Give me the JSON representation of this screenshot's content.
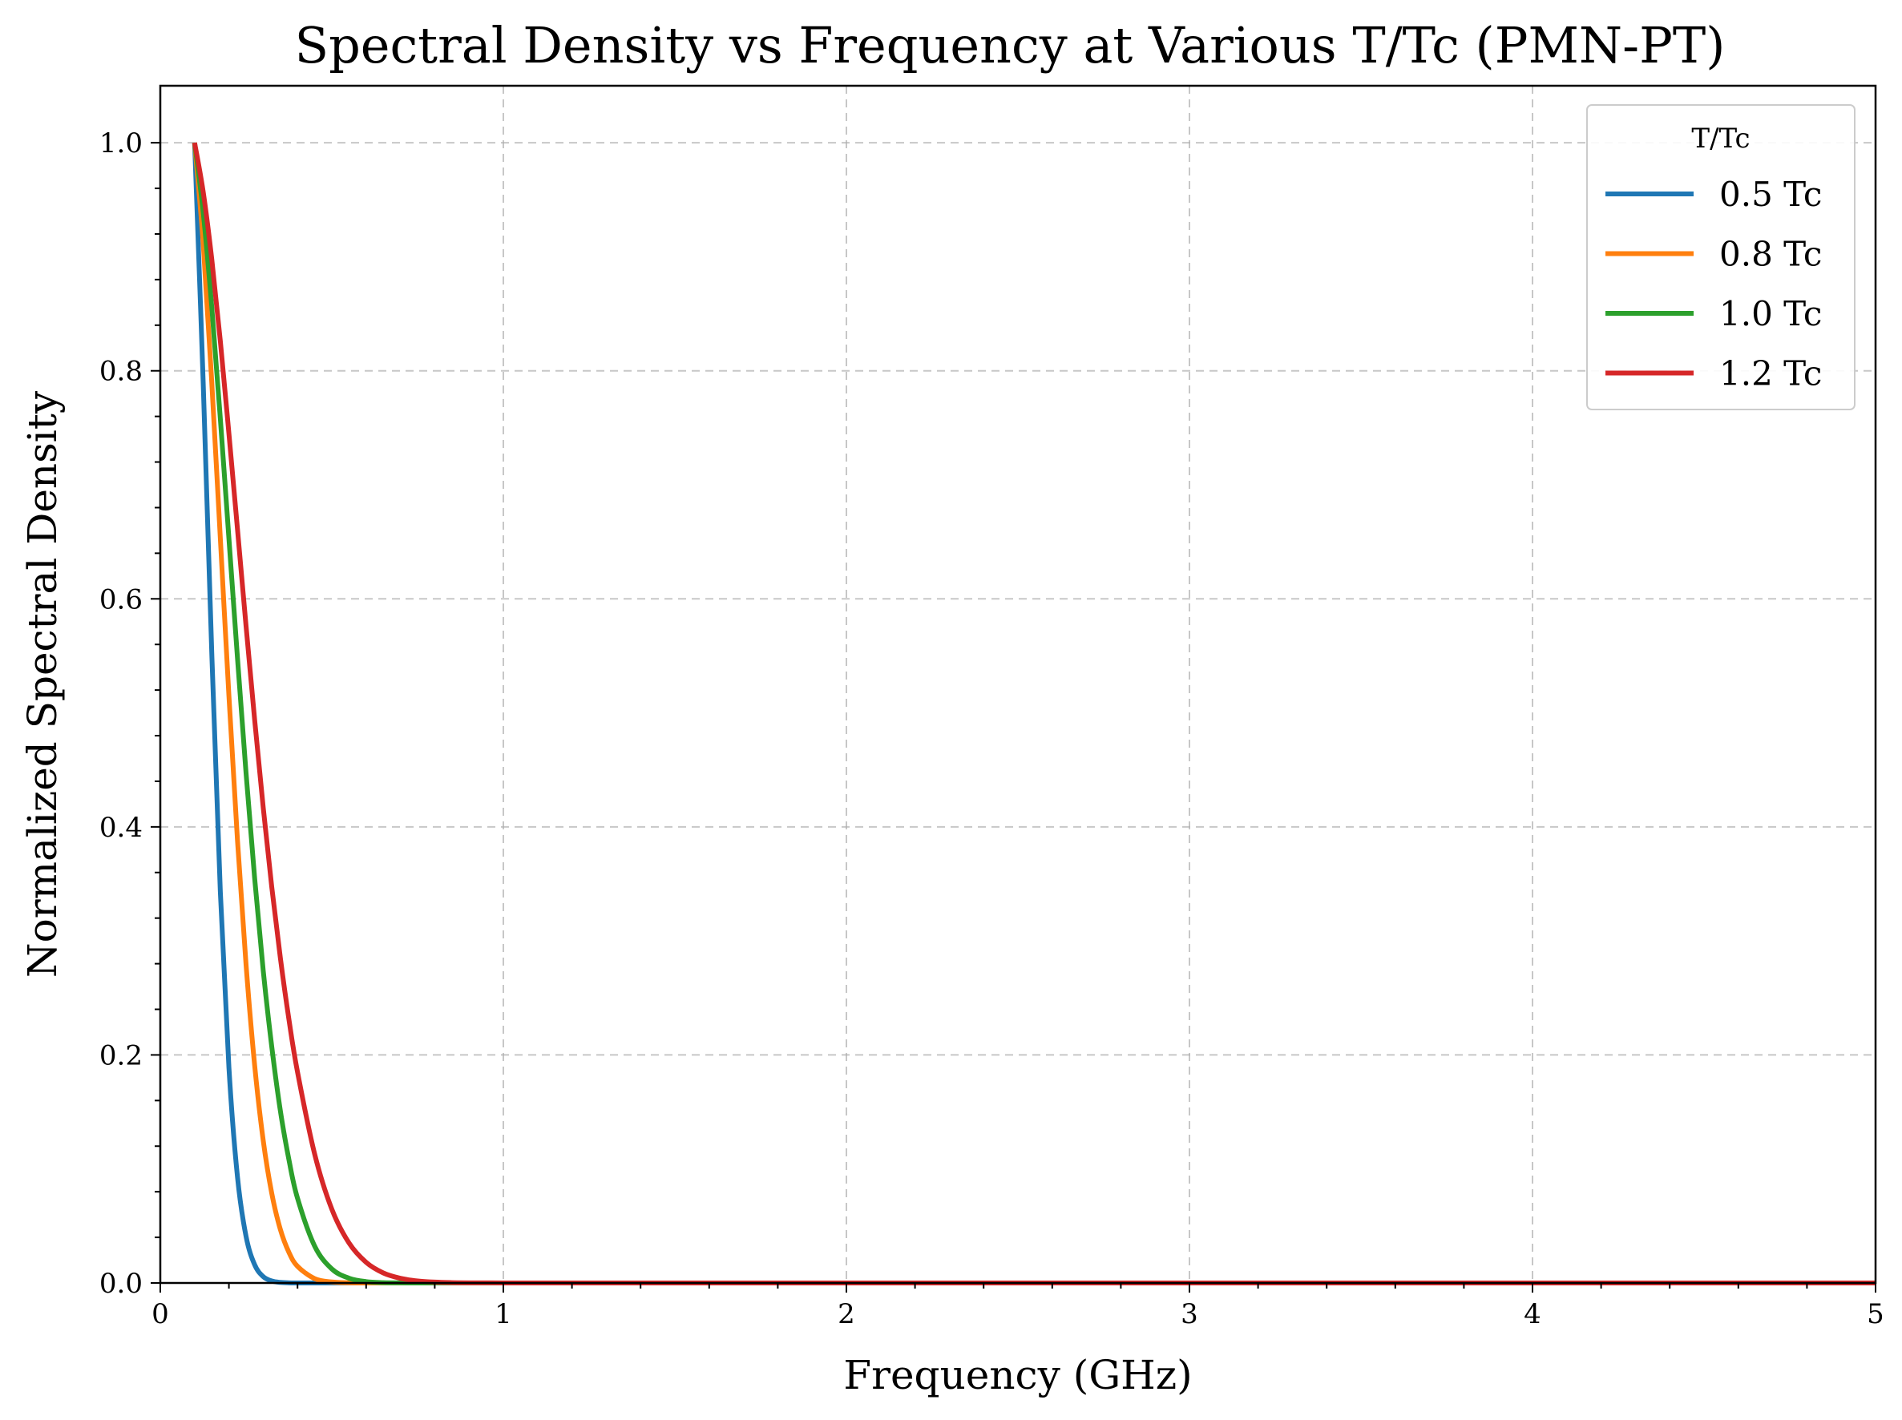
{
  "chart_data": {
    "type": "line",
    "title": "Spectral Density vs Frequency at Various T/Tc (PMN-PT)",
    "xlabel": "Frequency (GHz)",
    "ylabel": "Normalized Spectral Density",
    "xlim": [
      0,
      5
    ],
    "ylim": [
      0,
      1.05
    ],
    "x_ticks": [
      0,
      1,
      2,
      3,
      4,
      5
    ],
    "x_tick_labels": [
      "0",
      "1",
      "2",
      "3",
      "4",
      "5"
    ],
    "y_ticks": [
      0.0,
      0.2,
      0.4,
      0.6,
      0.8,
      1.0
    ],
    "y_tick_labels": [
      "0.0",
      "0.2",
      "0.4",
      "0.6",
      "0.8",
      "1.0"
    ],
    "grid": true,
    "legend": {
      "title": "T/Tc",
      "placement": "top-right"
    },
    "x": [
      0.1,
      0.125,
      0.15,
      0.175,
      0.2,
      0.225,
      0.25,
      0.275,
      0.3,
      0.325,
      0.35,
      0.375,
      0.4,
      0.45,
      0.5,
      0.55,
      0.6,
      0.65,
      0.7,
      0.75,
      0.8,
      0.85,
      0.9,
      1.0,
      1.1,
      1.2,
      1.5,
      2.0,
      2.5,
      3.0,
      3.5,
      4.0,
      4.5,
      5.0
    ],
    "series": [
      {
        "name": "0.5 Tc",
        "color": "#1f77b4",
        "values": [
          1.0,
          0.79,
          0.553,
          0.343,
          0.189,
          0.0929,
          0.0408,
          0.016,
          0.0056,
          0.00176,
          0.0005,
          0.00012,
          3e-05,
          0,
          0,
          0,
          0,
          0,
          0,
          0,
          0,
          0,
          0,
          0,
          0,
          0,
          0,
          0,
          0,
          0,
          0,
          0,
          0,
          0
        ]
      },
      {
        "name": "0.8 Tc",
        "color": "#ff7f0e",
        "values": [
          1.0,
          0.912,
          0.79,
          0.653,
          0.515,
          0.388,
          0.279,
          0.191,
          0.125,
          0.0784,
          0.0469,
          0.0268,
          0.0146,
          0.0038,
          0.00085,
          0.00017,
          3e-05,
          0,
          0,
          0,
          0,
          0,
          0,
          0,
          0,
          0,
          0,
          0,
          0,
          0,
          0,
          0,
          0,
          0
        ]
      },
      {
        "name": "1.0 Tc",
        "color": "#2ca02c",
        "values": [
          1.0,
          0.939,
          0.856,
          0.758,
          0.653,
          0.548,
          0.447,
          0.355,
          0.274,
          0.207,
          0.151,
          0.108,
          0.0743,
          0.0323,
          0.0123,
          0.0042,
          0.0012,
          0.0003,
          8e-05,
          0,
          0,
          0,
          0,
          0,
          0,
          0,
          0,
          0,
          0,
          0,
          0,
          0,
          0,
          0
        ]
      },
      {
        "name": "1.2 Tc",
        "color": "#d62728",
        "values": [
          1.0,
          0.957,
          0.898,
          0.826,
          0.745,
          0.661,
          0.576,
          0.494,
          0.417,
          0.347,
          0.285,
          0.231,
          0.185,
          0.113,
          0.0647,
          0.0351,
          0.0181,
          0.0088,
          0.0041,
          0.0018,
          0.00075,
          0.0003,
          0.00012,
          2e-05,
          0,
          0,
          0,
          0,
          0,
          0,
          0,
          0,
          0,
          0
        ]
      }
    ]
  }
}
